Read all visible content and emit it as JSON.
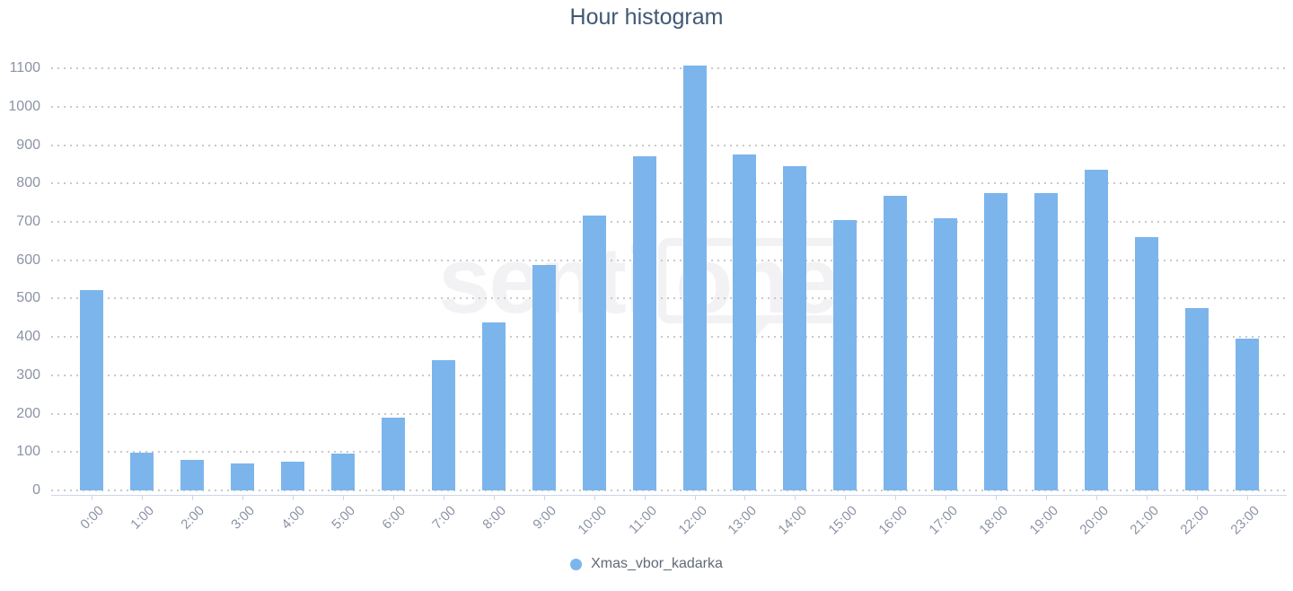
{
  "title": "Hour histogram",
  "watermark": {
    "left": "senti",
    "right": "one"
  },
  "colors": {
    "bar": "#7cb5ec",
    "title_text": "#3e5974",
    "axis_label": "#8b93a4",
    "legend_text": "#5f6a76",
    "grid_dot": "#c9c9c9",
    "axis_line": "#ccd6eb",
    "watermark": "#f2f2f4",
    "background": "#ffffff"
  },
  "chart_data": {
    "type": "bar",
    "title": "Hour histogram",
    "categories": [
      "0:00",
      "1:00",
      "2:00",
      "3:00",
      "4:00",
      "5:00",
      "6:00",
      "7:00",
      "8:00",
      "9:00",
      "10:00",
      "11:00",
      "12:00",
      "13:00",
      "14:00",
      "15:00",
      "16:00",
      "17:00",
      "18:00",
      "19:00",
      "20:00",
      "21:00",
      "22:00",
      "23:00"
    ],
    "series": [
      {
        "name": "Xmas_vbor_kadarka",
        "color": "#7cb5ec",
        "values": [
          522,
          99,
          80,
          70,
          75,
          97,
          190,
          340,
          438,
          588,
          717,
          870,
          1108,
          876,
          845,
          704,
          768,
          710,
          775,
          775,
          835,
          660,
          475,
          395
        ]
      }
    ],
    "xlabel": "",
    "ylabel": "",
    "ylim": [
      0,
      1100
    ],
    "ytick_interval": 100,
    "yticks": [
      0,
      100,
      200,
      300,
      400,
      500,
      600,
      700,
      800,
      900,
      1000,
      1100
    ],
    "grid": "horizontal dotted gridlines",
    "x_tick_label_rotation": -45,
    "legend_position": "bottom-center",
    "watermark_text": "senti|one"
  }
}
